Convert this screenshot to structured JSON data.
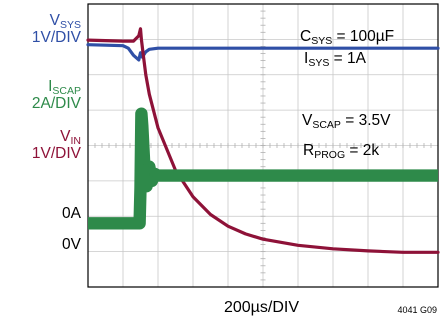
{
  "chart_data": {
    "type": "line",
    "title": "",
    "xlabel": "200µs/DIV",
    "figure_id": "4041 G09",
    "grid": true,
    "time_axis": {
      "divisions": 10,
      "unit_per_div": "200µs",
      "range_us": [
        0,
        2000
      ]
    },
    "vertical_divisions": 8,
    "channels": [
      {
        "id": "vsys",
        "label_main": "V",
        "label_sub": "SYS",
        "scale": "1V/DIV",
        "color": "#2f4fa6"
      },
      {
        "id": "iscap",
        "label_main": "I",
        "label_sub": "SCAP",
        "scale": "2A/DIV",
        "color": "#2e8a4a"
      },
      {
        "id": "vin",
        "label_main": "V",
        "label_sub": "IN",
        "scale": "1V/DIV",
        "color": "#8e1238"
      }
    ],
    "reference_markers": [
      {
        "text": "0A",
        "channel": "iscap",
        "level_div": 1.8
      },
      {
        "text": "0V",
        "channel": "vin",
        "level_div": 0.8
      }
    ],
    "annotations": [
      {
        "id": "csys",
        "main": "C",
        "sub": "SYS",
        "rest": " = 100µF"
      },
      {
        "id": "isys",
        "main": "I",
        "sub": "SYS",
        "rest": " = 1A"
      },
      {
        "id": "vscap",
        "main": "V",
        "sub": "SCAP",
        "rest": " = 3.5V"
      },
      {
        "id": "rprog",
        "main": "R",
        "sub": "PROG",
        "rest": " = 2k"
      }
    ],
    "series": [
      {
        "name": "VSYS",
        "channel": "vsys",
        "x_us": [
          0,
          200,
          230,
          260,
          290,
          300,
          310,
          330,
          350,
          400,
          600,
          1000,
          2000
        ],
        "y_div": [
          6.85,
          6.82,
          6.75,
          6.55,
          6.42,
          6.62,
          6.5,
          6.65,
          6.72,
          6.75,
          6.75,
          6.75,
          6.75
        ]
      },
      {
        "name": "ISCAP",
        "channel": "iscap",
        "x_us": [
          0,
          295,
          300,
          305,
          310,
          320,
          335,
          350,
          365,
          380,
          400,
          450,
          2000
        ],
        "y_div": [
          1.8,
          1.8,
          2.8,
          4.9,
          4.55,
          3.6,
          2.85,
          3.4,
          3.0,
          3.2,
          3.15,
          3.15,
          3.15
        ],
        "band_div": 0.35
      },
      {
        "name": "VIN",
        "channel": "vin",
        "x_us": [
          0,
          200,
          260,
          290,
          300,
          305,
          315,
          330,
          350,
          400,
          500,
          600,
          700,
          800,
          900,
          1000,
          1200,
          1400,
          1600,
          1800,
          2000
        ],
        "y_div": [
          6.98,
          6.95,
          6.95,
          7.1,
          7.3,
          7.0,
          6.6,
          6.0,
          5.45,
          4.5,
          3.3,
          2.55,
          2.05,
          1.72,
          1.5,
          1.35,
          1.18,
          1.08,
          1.02,
          0.98,
          0.98
        ]
      }
    ]
  }
}
